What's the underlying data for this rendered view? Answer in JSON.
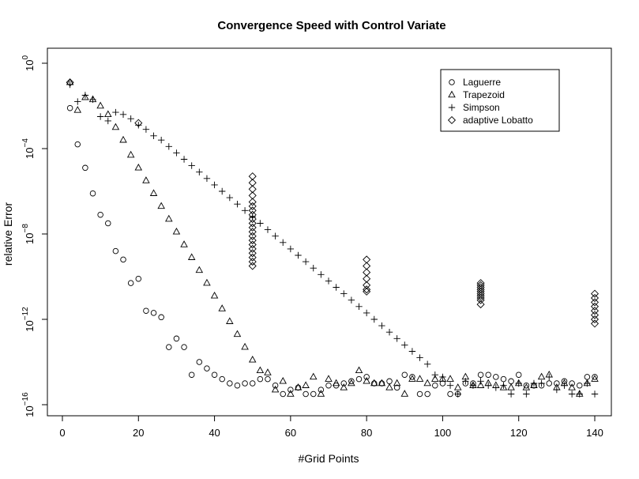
{
  "chart_data": {
    "type": "scatter",
    "title": "Convergence Speed with Control Variate",
    "xlabel": "#Grid Points",
    "ylabel": "relative Error",
    "x_ticks": [
      0,
      20,
      40,
      60,
      80,
      100,
      120,
      140
    ],
    "y_ticks": [
      {
        "exp": 0,
        "base": "10",
        "sup": "0"
      },
      {
        "exp": -4,
        "base": "10",
        "sup": "−4"
      },
      {
        "exp": -8,
        "base": "10",
        "sup": "−8"
      },
      {
        "exp": -12,
        "base": "10",
        "sup": "−12"
      },
      {
        "exp": -16,
        "base": "10",
        "sup": "−16"
      }
    ],
    "xlim": [
      -1,
      143
    ],
    "ylog10lim": [
      -16.5,
      0.3
    ],
    "y_scale": "log10",
    "grid": false,
    "legend_position": "top-right",
    "series": [
      {
        "name": "Laguerre",
        "marker": "circle",
        "points": [
          [
            2,
            -2.1
          ],
          [
            4,
            -3.8
          ],
          [
            6,
            -4.9
          ],
          [
            8,
            -6.1
          ],
          [
            10,
            -7.1
          ],
          [
            12,
            -7.5
          ],
          [
            14,
            -8.8
          ],
          [
            16,
            -9.2
          ],
          [
            18,
            -10.3
          ],
          [
            20,
            -10.1
          ],
          [
            22,
            -11.6
          ],
          [
            24,
            -11.7
          ],
          [
            26,
            -11.9
          ],
          [
            28,
            -13.3
          ],
          [
            30,
            -12.9
          ],
          [
            32,
            -13.3
          ],
          [
            34,
            -14.6
          ],
          [
            36,
            -14.0
          ],
          [
            38,
            -14.3
          ],
          [
            40,
            -14.6
          ],
          [
            42,
            -14.8
          ],
          [
            44,
            -15.0
          ],
          [
            46,
            -15.1
          ],
          [
            48,
            -15.0
          ],
          [
            50,
            -15.0
          ],
          [
            52,
            -14.8
          ],
          [
            54,
            -14.8
          ],
          [
            56,
            -15.1
          ],
          [
            58,
            -15.5
          ],
          [
            60,
            -15.3
          ],
          [
            62,
            -15.2
          ],
          [
            64,
            -15.5
          ],
          [
            66,
            -15.5
          ],
          [
            68,
            -15.3
          ],
          [
            70,
            -15.1
          ],
          [
            72,
            -15.1
          ],
          [
            74,
            -15.0
          ],
          [
            76,
            -14.9
          ],
          [
            78,
            -14.8
          ],
          [
            80,
            -14.7
          ],
          [
            82,
            -15.0
          ],
          [
            84,
            -15.0
          ],
          [
            86,
            -14.9
          ],
          [
            88,
            -15.2
          ],
          [
            90,
            -14.6
          ],
          [
            92,
            -14.7
          ],
          [
            94,
            -15.5
          ],
          [
            96,
            -15.5
          ],
          [
            98,
            -15.1
          ],
          [
            100,
            -15.0
          ],
          [
            102,
            -15.5
          ],
          [
            104,
            -15.5
          ],
          [
            106,
            -15.0
          ],
          [
            108,
            -15.0
          ],
          [
            110,
            -14.6
          ],
          [
            112,
            -14.6
          ],
          [
            114,
            -14.7
          ],
          [
            116,
            -14.8
          ],
          [
            118,
            -14.9
          ],
          [
            120,
            -14.6
          ],
          [
            122,
            -15.1
          ],
          [
            124,
            -15.1
          ],
          [
            126,
            -15.1
          ],
          [
            128,
            -15.0
          ],
          [
            130,
            -15.0
          ],
          [
            132,
            -14.9
          ],
          [
            134,
            -15.0
          ],
          [
            136,
            -15.1
          ],
          [
            138,
            -14.7
          ],
          [
            140,
            -14.7
          ]
        ]
      },
      {
        "name": "Trapezoid",
        "marker": "triangle",
        "points": [
          [
            2,
            -0.9
          ],
          [
            4,
            -2.2
          ],
          [
            6,
            -1.6
          ],
          [
            8,
            -1.7
          ],
          [
            10,
            -2.0
          ],
          [
            12,
            -2.4
          ],
          [
            14,
            -3.0
          ],
          [
            16,
            -3.6
          ],
          [
            18,
            -4.3
          ],
          [
            20,
            -4.9
          ],
          [
            22,
            -5.5
          ],
          [
            24,
            -6.1
          ],
          [
            26,
            -6.7
          ],
          [
            28,
            -7.3
          ],
          [
            30,
            -7.9
          ],
          [
            32,
            -8.5
          ],
          [
            34,
            -9.1
          ],
          [
            36,
            -9.7
          ],
          [
            38,
            -10.3
          ],
          [
            40,
            -10.9
          ],
          [
            42,
            -11.5
          ],
          [
            44,
            -12.1
          ],
          [
            46,
            -12.7
          ],
          [
            48,
            -13.3
          ],
          [
            50,
            -13.9
          ],
          [
            52,
            -14.4
          ],
          [
            54,
            -14.5
          ],
          [
            56,
            -15.3
          ],
          [
            58,
            -14.9
          ],
          [
            60,
            -15.5
          ],
          [
            62,
            -15.2
          ],
          [
            64,
            -15.1
          ],
          [
            66,
            -14.7
          ],
          [
            68,
            -15.5
          ],
          [
            70,
            -14.8
          ],
          [
            72,
            -15.0
          ],
          [
            74,
            -15.2
          ],
          [
            76,
            -15.0
          ],
          [
            78,
            -14.4
          ],
          [
            80,
            -14.9
          ],
          [
            82,
            -15.0
          ],
          [
            84,
            -15.0
          ],
          [
            86,
            -15.2
          ],
          [
            88,
            -15.0
          ],
          [
            90,
            -15.5
          ],
          [
            92,
            -14.8
          ],
          [
            94,
            -14.8
          ],
          [
            96,
            -15.0
          ],
          [
            98,
            -14.8
          ],
          [
            100,
            -14.8
          ],
          [
            102,
            -14.8
          ],
          [
            104,
            -15.2
          ],
          [
            106,
            -14.7
          ],
          [
            108,
            -15.1
          ],
          [
            110,
            -15.1
          ],
          [
            112,
            -15.0
          ],
          [
            114,
            -15.1
          ],
          [
            116,
            -15.2
          ],
          [
            118,
            -15.2
          ],
          [
            120,
            -15.0
          ],
          [
            122,
            -15.2
          ],
          [
            124,
            -15.1
          ],
          [
            126,
            -14.7
          ],
          [
            128,
            -14.6
          ],
          [
            130,
            -15.2
          ],
          [
            132,
            -15.0
          ],
          [
            134,
            -15.2
          ],
          [
            136,
            -15.5
          ],
          [
            138,
            -15.0
          ],
          [
            140,
            -14.8
          ]
        ]
      },
      {
        "name": "Simpson",
        "marker": "plus",
        "points": [
          [
            2,
            -1.0
          ],
          [
            4,
            -1.8
          ],
          [
            6,
            -1.5
          ],
          [
            8,
            -1.7
          ],
          [
            10,
            -2.5
          ],
          [
            12,
            -2.7
          ],
          [
            14,
            -2.3
          ],
          [
            16,
            -2.4
          ],
          [
            18,
            -2.6
          ],
          [
            20,
            -2.9
          ],
          [
            22,
            -3.1
          ],
          [
            24,
            -3.4
          ],
          [
            26,
            -3.6
          ],
          [
            28,
            -3.9
          ],
          [
            30,
            -4.2
          ],
          [
            32,
            -4.5
          ],
          [
            34,
            -4.8
          ],
          [
            36,
            -5.1
          ],
          [
            38,
            -5.4
          ],
          [
            40,
            -5.7
          ],
          [
            42,
            -6.0
          ],
          [
            44,
            -6.3
          ],
          [
            46,
            -6.6
          ],
          [
            48,
            -6.9
          ],
          [
            50,
            -7.2
          ],
          [
            52,
            -7.5
          ],
          [
            54,
            -7.8
          ],
          [
            56,
            -8.1
          ],
          [
            58,
            -8.4
          ],
          [
            60,
            -8.7
          ],
          [
            62,
            -9.0
          ],
          [
            64,
            -9.3
          ],
          [
            66,
            -9.6
          ],
          [
            68,
            -9.9
          ],
          [
            70,
            -10.2
          ],
          [
            72,
            -10.5
          ],
          [
            74,
            -10.8
          ],
          [
            76,
            -11.1
          ],
          [
            78,
            -11.4
          ],
          [
            80,
            -11.7
          ],
          [
            82,
            -12.0
          ],
          [
            84,
            -12.3
          ],
          [
            86,
            -12.6
          ],
          [
            88,
            -12.9
          ],
          [
            90,
            -13.2
          ],
          [
            92,
            -13.5
          ],
          [
            94,
            -13.8
          ],
          [
            96,
            -14.1
          ],
          [
            98,
            -14.6
          ],
          [
            100,
            -14.7
          ],
          [
            102,
            -15.1
          ],
          [
            104,
            -15.5
          ],
          [
            106,
            -14.9
          ],
          [
            108,
            -15.1
          ],
          [
            110,
            -14.9
          ],
          [
            112,
            -15.1
          ],
          [
            114,
            -15.2
          ],
          [
            116,
            -15.1
          ],
          [
            118,
            -15.5
          ],
          [
            120,
            -15.0
          ],
          [
            122,
            -15.5
          ],
          [
            124,
            -15.0
          ],
          [
            126,
            -15.0
          ],
          [
            128,
            -14.7
          ],
          [
            130,
            -15.3
          ],
          [
            132,
            -15.1
          ],
          [
            134,
            -15.5
          ],
          [
            136,
            -15.5
          ],
          [
            138,
            -15.0
          ],
          [
            140,
            -15.5
          ]
        ]
      },
      {
        "name": "adaptive Lobatto",
        "marker": "diamond",
        "points": [
          [
            2,
            -0.9
          ],
          [
            20,
            -2.8
          ],
          [
            50,
            -5.3
          ],
          [
            50,
            -5.6
          ],
          [
            50,
            -5.9
          ],
          [
            50,
            -6.2
          ],
          [
            50,
            -6.5
          ],
          [
            50,
            -6.7
          ],
          [
            50,
            -6.9
          ],
          [
            50,
            -7.1
          ],
          [
            50,
            -7.3
          ],
          [
            50,
            -7.5
          ],
          [
            50,
            -7.7
          ],
          [
            50,
            -7.9
          ],
          [
            50,
            -8.1
          ],
          [
            50,
            -8.3
          ],
          [
            50,
            -8.5
          ],
          [
            50,
            -8.7
          ],
          [
            50,
            -8.9
          ],
          [
            50,
            -9.1
          ],
          [
            50,
            -9.3
          ],
          [
            50,
            -9.5
          ],
          [
            80,
            -9.2
          ],
          [
            80,
            -9.5
          ],
          [
            80,
            -9.8
          ],
          [
            80,
            -10.1
          ],
          [
            80,
            -10.4
          ],
          [
            80,
            -10.6
          ],
          [
            80,
            -10.7
          ],
          [
            110,
            -10.3
          ],
          [
            110,
            -10.4
          ],
          [
            110,
            -10.5
          ],
          [
            110,
            -10.6
          ],
          [
            110,
            -10.7
          ],
          [
            110,
            -10.8
          ],
          [
            110,
            -10.9
          ],
          [
            110,
            -11.0
          ],
          [
            110,
            -11.1
          ],
          [
            110,
            -11.3
          ],
          [
            140,
            -10.8
          ],
          [
            140,
            -11.0
          ],
          [
            140,
            -11.2
          ],
          [
            140,
            -11.4
          ],
          [
            140,
            -11.6
          ],
          [
            140,
            -11.8
          ],
          [
            140,
            -12.0
          ],
          [
            140,
            -12.2
          ]
        ]
      }
    ]
  }
}
